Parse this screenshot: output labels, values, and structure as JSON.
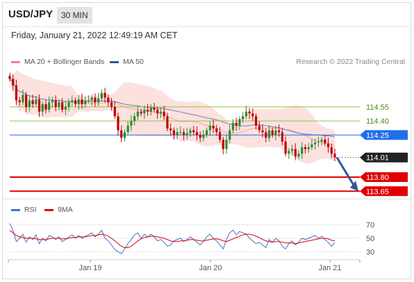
{
  "header": {
    "symbol": "USD/JPY",
    "timeframe": "30 MIN",
    "datetime": "Friday, January 21, 2022 12:49:19 AM CET"
  },
  "legend": {
    "bollinger": {
      "label": "MA 20 + Bollinger Bands",
      "color": "#f08080"
    },
    "ma50": {
      "label": "MA 50",
      "color": "#2f5597"
    },
    "credit": "Research © 2022 Trading Central"
  },
  "rsi_legend": {
    "rsi": {
      "label": "RSI",
      "color": "#4472c4"
    },
    "ma9": {
      "label": "9MA",
      "color": "#e00000"
    }
  },
  "colors": {
    "up_candle": "#2e8b2e",
    "down_candle": "#c00000",
    "resistance": "#8dc63f",
    "pivot": "#1f6feb",
    "support": "#e00000",
    "current_price": "#222222",
    "arrow": "#2f5597"
  },
  "chart_data": [
    {
      "type": "candlestick",
      "title": "",
      "x_ticks": [
        "Jan 19",
        "Jan 20",
        "Jan 21"
      ],
      "ylim": [
        113.6,
        114.95
      ],
      "levels": [
        {
          "label": "114.55",
          "value": 114.55,
          "kind": "resistance"
        },
        {
          "label": "114.40",
          "value": 114.4,
          "kind": "resistance"
        },
        {
          "label": "114.25",
          "value": 114.25,
          "kind": "pivot"
        },
        {
          "label": "114.01",
          "value": 114.01,
          "kind": "current"
        },
        {
          "label": "113.80",
          "value": 113.8,
          "kind": "support"
        },
        {
          "label": "113.65",
          "value": 113.65,
          "kind": "support"
        }
      ],
      "close_path": [
        114.85,
        114.78,
        114.62,
        114.6,
        114.68,
        114.55,
        114.62,
        114.58,
        114.63,
        114.5,
        114.58,
        114.52,
        114.6,
        114.62,
        114.55,
        114.6,
        114.52,
        114.55,
        114.6,
        114.62,
        114.58,
        114.63,
        114.58,
        114.62,
        114.62,
        114.65,
        114.6,
        114.64,
        114.7,
        114.65,
        114.6,
        114.55,
        114.45,
        114.3,
        114.22,
        114.28,
        114.35,
        114.4,
        114.45,
        114.5,
        114.48,
        114.52,
        114.5,
        114.54,
        114.52,
        114.48,
        114.5,
        114.45,
        114.32,
        114.3,
        114.25,
        114.28,
        114.28,
        114.25,
        114.27,
        114.3,
        114.28,
        114.25,
        114.22,
        114.25,
        114.3,
        114.35,
        114.32,
        114.28,
        114.2,
        114.1,
        114.2,
        114.3,
        114.38,
        114.35,
        114.42,
        114.45,
        114.5,
        114.48,
        114.45,
        114.35,
        114.3,
        114.28,
        114.22,
        114.3,
        114.25,
        114.3,
        114.28,
        114.18,
        114.05,
        114.08,
        114.1,
        114.02,
        114.05,
        114.12,
        114.1,
        114.12,
        114.15,
        114.17,
        114.18,
        114.2,
        114.16,
        114.12,
        114.05,
        114.01
      ]
    },
    {
      "type": "line",
      "title": "RSI",
      "x_ticks": [
        "Jan 19",
        "Jan 20",
        "Jan 21"
      ],
      "y_ticks": [
        70,
        50,
        30
      ],
      "ylim": [
        22,
        80
      ],
      "series": [
        {
          "name": "RSI",
          "values": [
            72,
            62,
            45,
            50,
            56,
            44,
            52,
            48,
            55,
            42,
            50,
            46,
            54,
            52,
            48,
            52,
            45,
            48,
            52,
            55,
            50,
            54,
            50,
            53,
            55,
            58,
            52,
            56,
            62,
            50,
            46,
            40,
            33,
            30,
            27,
            34,
            42,
            48,
            55,
            58,
            50,
            56,
            52,
            56,
            52,
            46,
            48,
            44,
            38,
            40,
            46,
            48,
            50,
            45,
            48,
            52,
            48,
            44,
            40,
            45,
            52,
            56,
            50,
            46,
            40,
            34,
            48,
            58,
            62,
            55,
            60,
            58,
            56,
            50,
            46,
            42,
            44,
            40,
            36,
            48,
            44,
            50,
            46,
            38,
            34,
            42,
            46,
            40,
            44,
            50,
            48,
            50,
            52,
            54,
            50,
            53,
            48,
            44,
            38,
            44
          ]
        },
        {
          "name": "9MA",
          "values": [
            62,
            58,
            54,
            52,
            51,
            50,
            50,
            50,
            49,
            48,
            48,
            48,
            49,
            50,
            50,
            50,
            49,
            49,
            50,
            51,
            51,
            52,
            52,
            52,
            53,
            54,
            54,
            55,
            56,
            55,
            53,
            50,
            46,
            42,
            38,
            36,
            36,
            38,
            42,
            46,
            49,
            51,
            52,
            53,
            53,
            52,
            51,
            50,
            48,
            46,
            45,
            45,
            46,
            46,
            47,
            48,
            48,
            47,
            46,
            46,
            47,
            48,
            49,
            49,
            48,
            46,
            45,
            47,
            49,
            51,
            53,
            55,
            56,
            56,
            55,
            53,
            51,
            48,
            46,
            45,
            44,
            45,
            45,
            44,
            43,
            43,
            43,
            42,
            43,
            44,
            45,
            46,
            47,
            48,
            49,
            50,
            50,
            49,
            47,
            46
          ]
        }
      ]
    }
  ]
}
